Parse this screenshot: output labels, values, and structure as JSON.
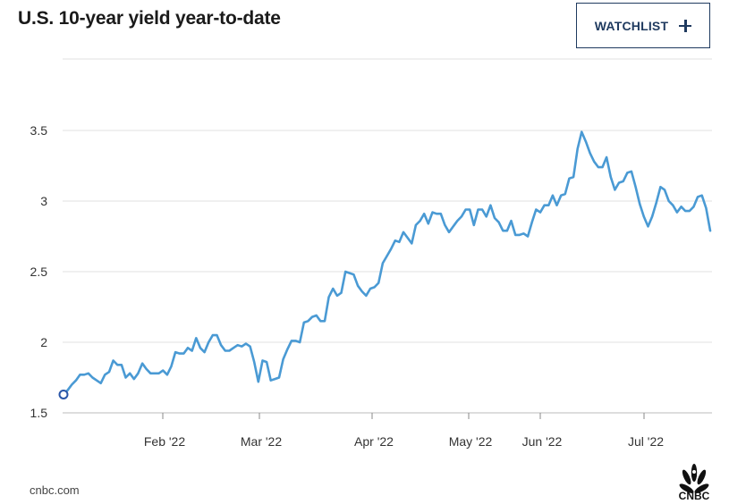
{
  "header": {
    "title": "U.S. 10-year yield year-to-date",
    "watchlist_label": "WATCHLIST"
  },
  "footer": {
    "source": "cnbc.com",
    "logo_text": "CNBC"
  },
  "colors": {
    "line": "#4a9ad4",
    "grid": "#e2e2e2",
    "button": "#1f3a5f"
  },
  "chart_data": {
    "type": "line",
    "title": "U.S. 10-year yield year-to-date",
    "xlabel": "",
    "ylabel": "",
    "x_tick_labels": [
      "Feb '22",
      "Mar '22",
      "Apr '22",
      "May '22",
      "Jun '22",
      "Jul '22"
    ],
    "y_ticks": [
      1.5,
      2,
      2.5,
      3,
      3.5
    ],
    "y_tick_labels": [
      "1.5",
      "2",
      "2.5",
      "3",
      "3.5"
    ],
    "ylim": [
      1.5,
      3.9
    ],
    "grid": "horizontal",
    "start_marker": true,
    "series": [
      {
        "x_range": [
          "Jan 3 '22",
          "Jul 29 '22"
        ],
        "values": [
          1.63,
          1.66,
          1.7,
          1.73,
          1.77,
          1.77,
          1.78,
          1.75,
          1.73,
          1.71,
          1.77,
          1.79,
          1.87,
          1.84,
          1.84,
          1.75,
          1.78,
          1.74,
          1.78,
          1.85,
          1.81,
          1.78,
          1.78,
          1.78,
          1.8,
          1.77,
          1.83,
          1.93,
          1.92,
          1.92,
          1.96,
          1.94,
          2.03,
          1.96,
          1.93,
          2.0,
          2.05,
          2.05,
          1.98,
          1.94,
          1.94,
          1.96,
          1.98,
          1.97,
          1.99,
          1.97,
          1.86,
          1.72,
          1.87,
          1.86,
          1.73,
          1.74,
          1.75,
          1.88,
          1.95,
          2.01,
          2.01,
          2.0,
          2.14,
          2.15,
          2.18,
          2.19,
          2.15,
          2.15,
          2.32,
          2.38,
          2.33,
          2.35,
          2.5,
          2.49,
          2.48,
          2.4,
          2.36,
          2.33,
          2.38,
          2.39,
          2.42,
          2.56,
          2.61,
          2.66,
          2.72,
          2.71,
          2.78,
          2.74,
          2.7,
          2.83,
          2.86,
          2.91,
          2.84,
          2.92,
          2.91,
          2.91,
          2.83,
          2.78,
          2.82,
          2.86,
          2.89,
          2.94,
          2.94,
          2.83,
          2.94,
          2.94,
          2.89,
          2.97,
          2.88,
          2.85,
          2.79,
          2.79,
          2.86,
          2.76,
          2.76,
          2.77,
          2.75,
          2.85,
          2.94,
          2.92,
          2.97,
          2.97,
          3.04,
          2.97,
          3.04,
          3.05,
          3.16,
          3.17,
          3.37,
          3.49,
          3.42,
          3.34,
          3.28,
          3.24,
          3.24,
          3.31,
          3.17,
          3.08,
          3.13,
          3.14,
          3.2,
          3.21,
          3.1,
          2.98,
          2.89,
          2.82,
          2.89,
          2.99,
          3.1,
          3.08,
          3.0,
          2.97,
          2.92,
          2.96,
          2.93,
          2.93,
          2.96,
          3.03,
          3.04,
          2.95,
          2.79
        ]
      }
    ]
  }
}
